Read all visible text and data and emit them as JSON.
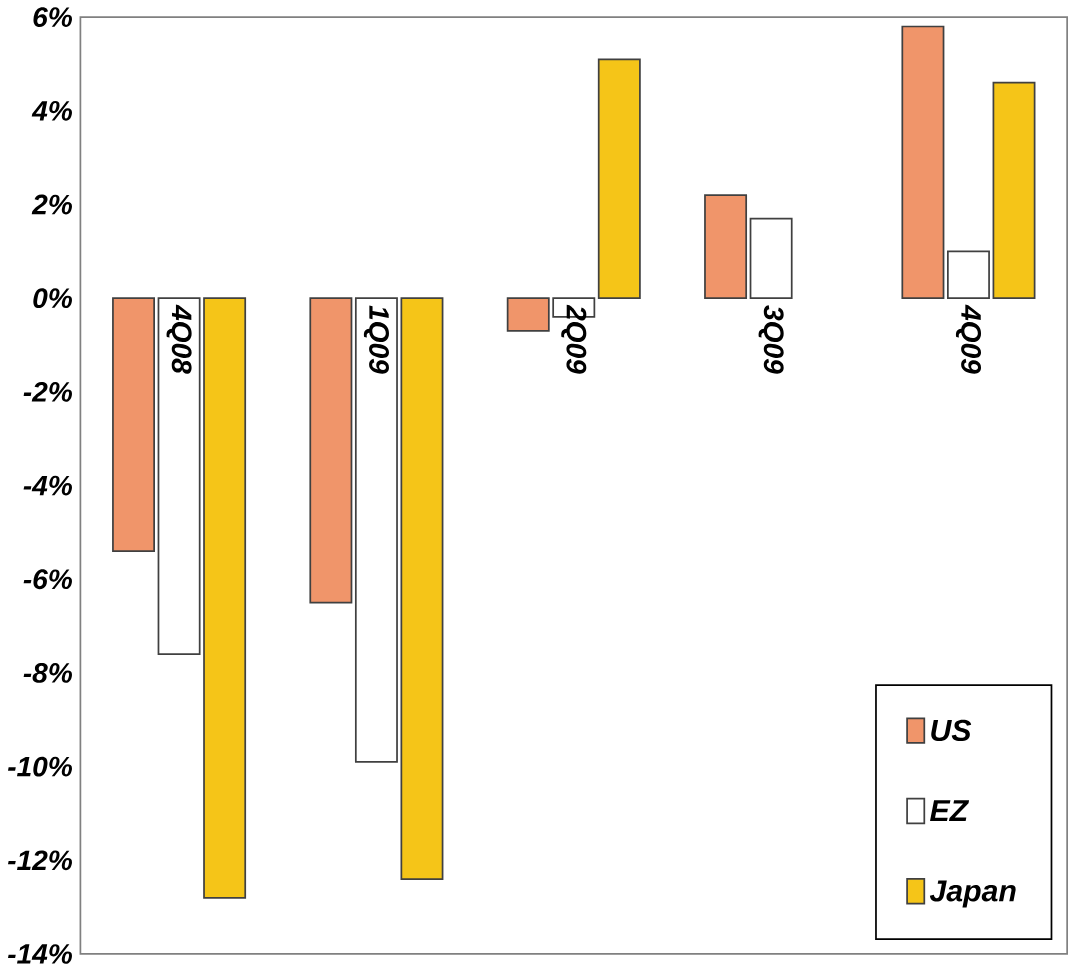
{
  "chart_data": {
    "type": "bar",
    "categories": [
      "4Q08",
      "1Q09",
      "2Q09",
      "3Q09",
      "4Q09"
    ],
    "series": [
      {
        "name": "US",
        "color": "#f0956a",
        "values": [
          -5.4,
          -6.5,
          -0.7,
          2.2,
          5.8
        ]
      },
      {
        "name": "EZ",
        "color": "#ffffff",
        "values": [
          -7.6,
          -9.9,
          -0.4,
          1.7,
          1.0
        ]
      },
      {
        "name": "Japan",
        "color": "#f5c518",
        "values": [
          -12.8,
          -12.4,
          5.1,
          null,
          4.6
        ]
      }
    ],
    "ylim": [
      -14,
      6
    ],
    "yticks": [
      {
        "value": -14,
        "label": "-14%"
      },
      {
        "value": -12,
        "label": "-12%"
      },
      {
        "value": -10,
        "label": "-10%"
      },
      {
        "value": -8,
        "label": "-8%"
      },
      {
        "value": -6,
        "label": "-6%"
      },
      {
        "value": -4,
        "label": "-4%"
      },
      {
        "value": -2,
        "label": "-2%"
      },
      {
        "value": 0,
        "label": "0%"
      },
      {
        "value": 2,
        "label": "2%"
      },
      {
        "value": 4,
        "label": "4%"
      },
      {
        "value": 6,
        "label": "6%"
      }
    ],
    "legend": "bottom right",
    "grid": false
  }
}
